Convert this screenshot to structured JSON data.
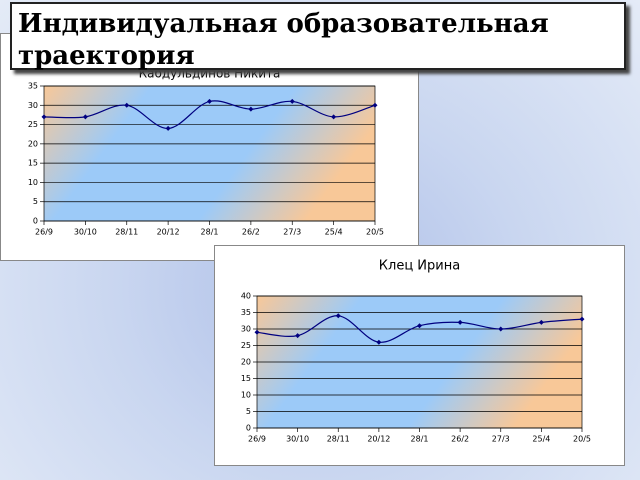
{
  "slide_title": "Индивидуальная образовательная траектория",
  "chart_data": [
    {
      "type": "line",
      "title": "Кабдульдинов Никита",
      "categories": [
        "26/9",
        "30/10",
        "28/11",
        "20/12",
        "28/1",
        "26/2",
        "27/3",
        "25/4",
        "20/5"
      ],
      "series": [
        {
          "color": "#000080",
          "values": [
            27,
            27,
            30,
            24,
            31,
            29,
            31,
            27,
            30
          ]
        }
      ],
      "ylim": [
        0,
        35
      ],
      "yticks": [
        0,
        5,
        10,
        15,
        20,
        25,
        30,
        35
      ],
      "grid": true
    },
    {
      "type": "line",
      "title": "Клец Ирина",
      "categories": [
        "26/9",
        "30/10",
        "28/11",
        "20/12",
        "28/1",
        "26/2",
        "27/3",
        "25/4",
        "20/5"
      ],
      "series": [
        {
          "color": "#000080",
          "values": [
            29,
            28,
            34,
            26,
            31,
            32,
            30,
            32,
            33
          ]
        }
      ],
      "ylim": [
        0,
        40
      ],
      "yticks": [
        0,
        5,
        10,
        15,
        20,
        25,
        30,
        35,
        40
      ],
      "grid": true
    }
  ]
}
